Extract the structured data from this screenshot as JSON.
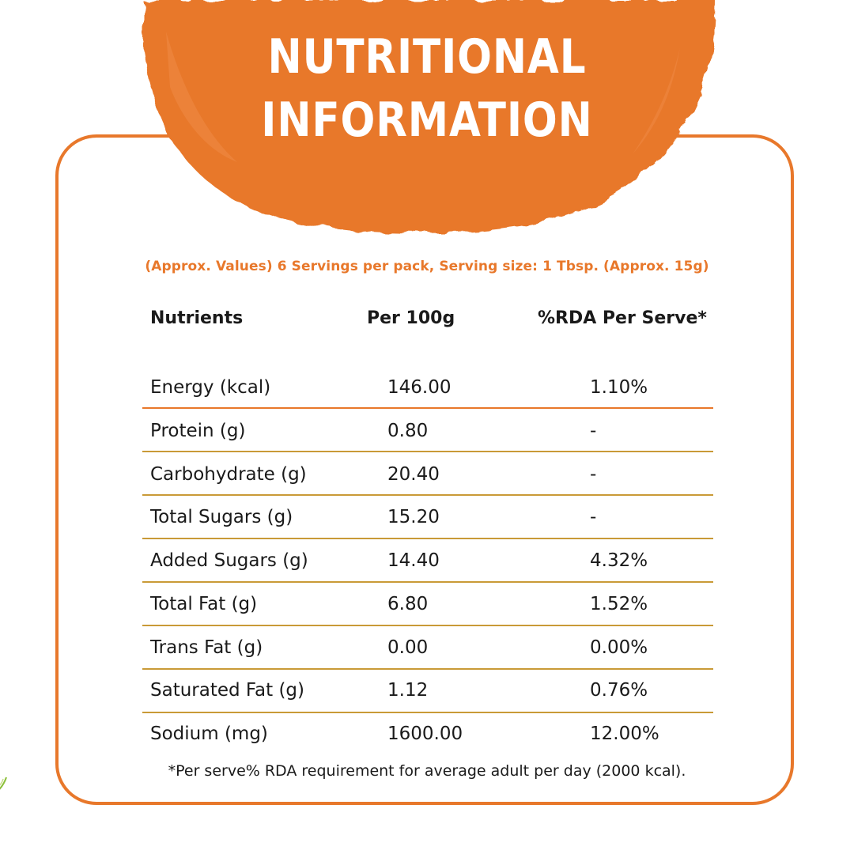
{
  "title": {
    "line1": "NUTRITIONAL",
    "line2": "INFORMATION"
  },
  "subtitle": "(Approx. Values) 6 Servings per pack, Serving size: 1 Tbsp. (Approx. 15g)",
  "columns": {
    "nutrient": "Nutrients",
    "per100": "Per 100g",
    "rda": "%RDA Per Serve*"
  },
  "rows": [
    {
      "nutrient": "Energy (kcal)",
      "per100": "146.00",
      "rda": "1.10%"
    },
    {
      "nutrient": "Protein (g)",
      "per100": "0.80",
      "rda": "-"
    },
    {
      "nutrient": "Carbohydrate (g)",
      "per100": "20.40",
      "rda": "-"
    },
    {
      "nutrient": "Total Sugars (g)",
      "per100": "15.20",
      "rda": "-"
    },
    {
      "nutrient": "Added Sugars (g)",
      "per100": "14.40",
      "rda": "4.32%"
    },
    {
      "nutrient": "Total Fat (g)",
      "per100": "6.80",
      "rda": "1.52%"
    },
    {
      "nutrient": "Trans Fat (g)",
      "per100": "0.00",
      "rda": "0.00%"
    },
    {
      "nutrient": "Saturated Fat (g)",
      "per100": "1.12",
      "rda": "0.76%"
    },
    {
      "nutrient": "Sodium (mg)",
      "per100": "1600.00",
      "rda": "12.00%"
    }
  ],
  "footnote": "*Per serve% RDA requirement for average adult per day (2000 kcal).",
  "colors": {
    "accent_orange": "#e8782b",
    "accent_olive": "#b89a2e",
    "text": "#1a1a1a",
    "background": "#ffffff"
  }
}
